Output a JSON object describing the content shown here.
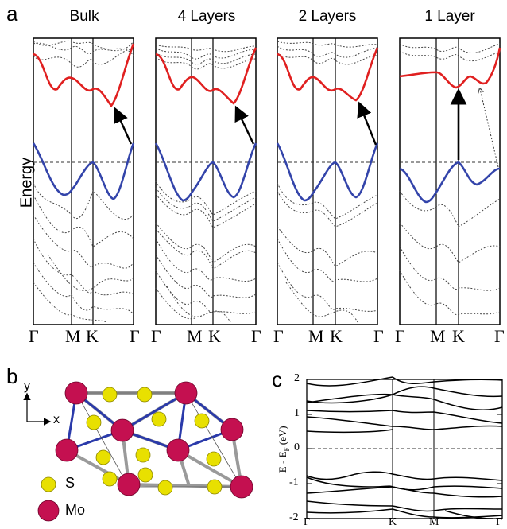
{
  "panel_a": {
    "label": "a",
    "ylabel": "Energy",
    "panels": [
      {
        "title": "Bulk",
        "ticks": [
          "Γ",
          "M",
          "K",
          "Γ"
        ]
      },
      {
        "title": "4 Layers",
        "ticks": [
          "Γ",
          "M",
          "K",
          "Γ"
        ]
      },
      {
        "title": "2 Layers",
        "ticks": [
          "Γ",
          "M",
          "K",
          "Γ"
        ]
      },
      {
        "title": "1 Layer",
        "ticks": [
          "Γ",
          "M",
          "K",
          "Γ"
        ]
      }
    ],
    "colors": {
      "conduction": "#e02020",
      "valence": "#3344aa",
      "other": "#444444"
    }
  },
  "panel_b": {
    "label": "b",
    "axis_y": "y",
    "axis_x": "x",
    "legend": [
      {
        "label": "S",
        "color": "#e8e000"
      },
      {
        "label": "Mo",
        "color": "#c41050"
      }
    ]
  },
  "panel_c": {
    "label": "c",
    "ylabel": "E - E",
    "ylabel_sub": "F",
    "ylabel_unit": " (eV)",
    "yticks": [
      "2",
      "1",
      "0",
      "-1",
      "-2"
    ],
    "xticks": [
      "Γ",
      "K",
      "M",
      "Γ"
    ]
  }
}
